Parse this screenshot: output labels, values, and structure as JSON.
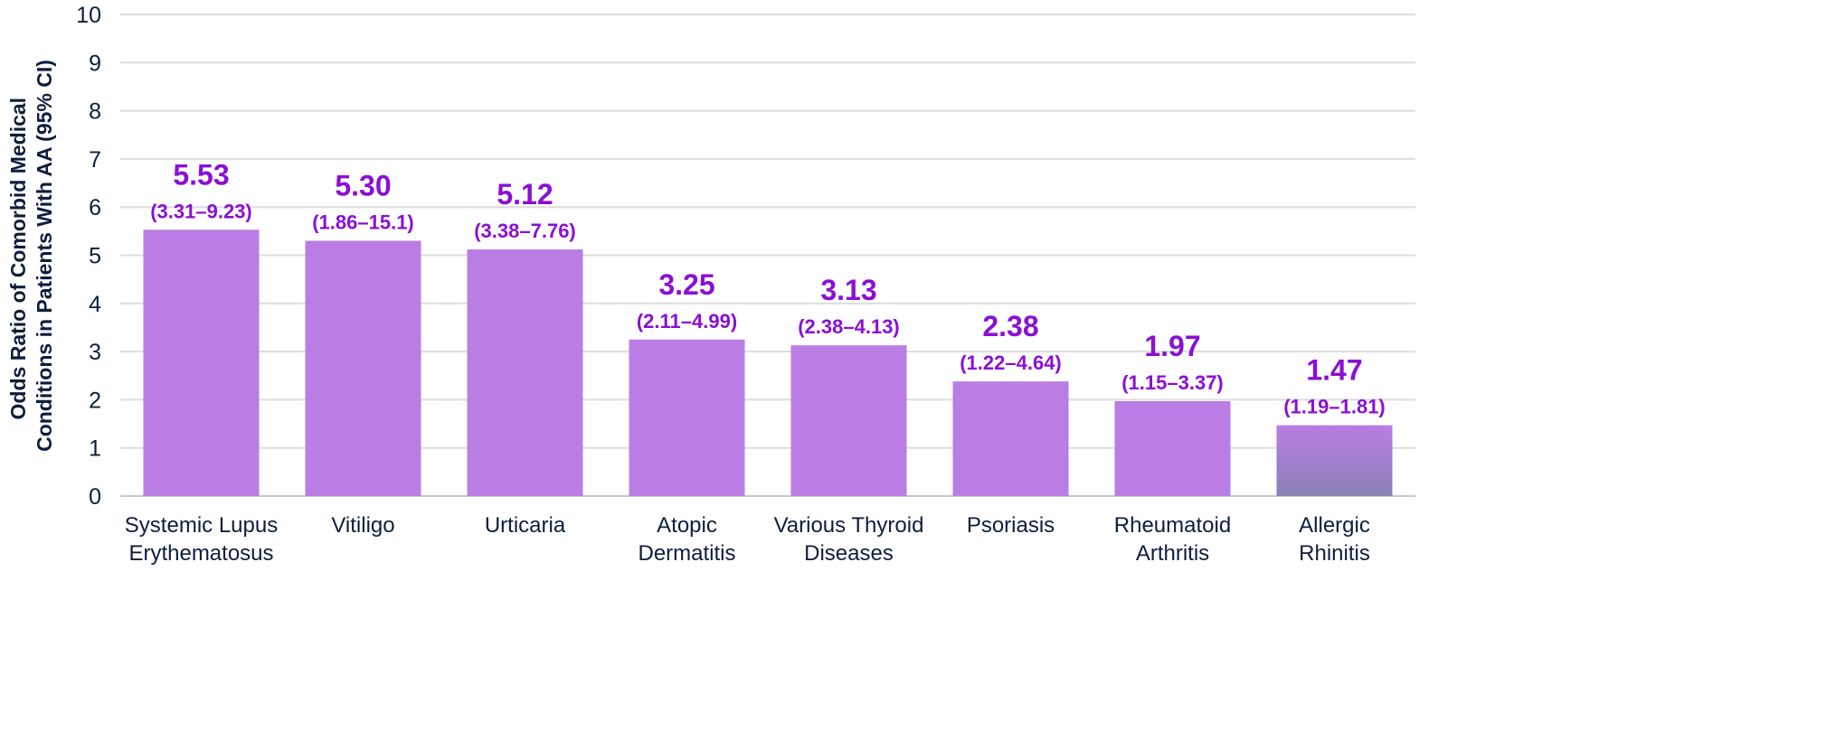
{
  "chart_data": {
    "type": "bar",
    "ylabel": "Odds Ratio of Comorbid Medical Conditions in Patients With AA (95% CI)",
    "ylabel_lines": [
      "Odds Ratio of Comorbid Medical",
      "Conditions in Patients With AA (95% CI)"
    ],
    "xlabel": "",
    "ylim": [
      0,
      10
    ],
    "yticks": [
      "0",
      "1",
      "2",
      "3",
      "4",
      "5",
      "6",
      "7",
      "8",
      "9",
      "10"
    ],
    "grid": true,
    "categories": [
      [
        "Systemic Lupus",
        "Erythematosus"
      ],
      [
        "Vitiligo"
      ],
      [
        "Urticaria"
      ],
      [
        "Atopic",
        "Dermatitis"
      ],
      [
        "Various Thyroid",
        "Diseases"
      ],
      [
        "Psoriasis"
      ],
      [
        "Rheumatoid",
        "Arthritis"
      ],
      [
        "Allergic",
        "Rhinitis"
      ]
    ],
    "values": [
      5.53,
      5.3,
      5.12,
      3.25,
      3.13,
      2.38,
      1.97,
      1.47
    ],
    "value_labels": [
      "5.53",
      "5.30",
      "5.12",
      "3.25",
      "3.13",
      "2.38",
      "1.97",
      "1.47"
    ],
    "ci_labels": [
      "(3.31–9.23)",
      "(1.86–15.1)",
      "(3.38–7.76)",
      "(2.11–4.99)",
      "(2.38–4.13)",
      "(1.22–4.64)",
      "(1.15–3.37)",
      "(1.19–1.81)"
    ],
    "colors": {
      "bar": "#b97de3",
      "last_bar_gradient_bottom": "#8a82b6",
      "label": "#8a0fd6",
      "axis_text": "#0d1e3d",
      "grid": "#dcdcdc"
    }
  }
}
